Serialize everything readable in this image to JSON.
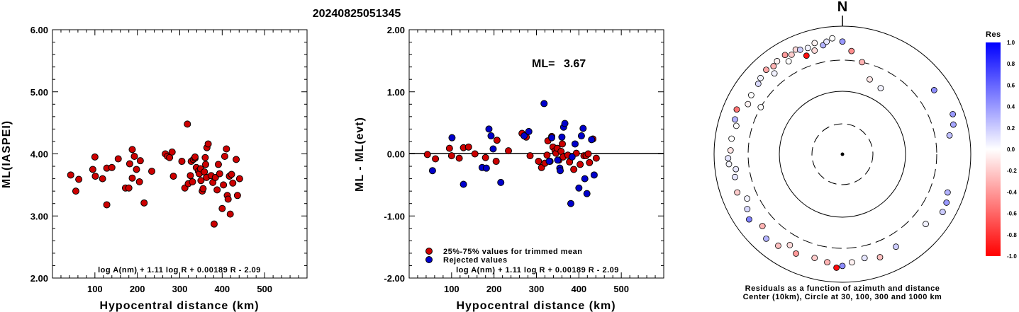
{
  "title": "20240825051345",
  "chart_data": [
    {
      "type": "scatter",
      "id": "ml-vs-distance",
      "xlabel": "Hypocentral distance (km)",
      "ylabel": "ML(IASPEI)",
      "xlim": [
        0,
        600
      ],
      "ylim": [
        2.0,
        6.0
      ],
      "xticks": [
        "100",
        "200",
        "300",
        "400",
        "500"
      ],
      "yticks": [
        "2.00",
        "3.00",
        "4.00",
        "5.00",
        "6.00"
      ],
      "formula": "log A(nm) + 1.11 log R + 0.00189 R - 2.09",
      "series": [
        {
          "color": "#cc0000",
          "points": [
            [
              43,
              3.66
            ],
            [
              55,
              3.4
            ],
            [
              62,
              3.59
            ],
            [
              95,
              3.75
            ],
            [
              100,
              3.95
            ],
            [
              101,
              3.64
            ],
            [
              118,
              3.6
            ],
            [
              128,
              3.18
            ],
            [
              128,
              3.77
            ],
            [
              140,
              3.78
            ],
            [
              155,
              3.92
            ],
            [
              172,
              3.45
            ],
            [
              180,
              3.45
            ],
            [
              182,
              3.84
            ],
            [
              188,
              4.07
            ],
            [
              188,
              3.61
            ],
            [
              193,
              3.96
            ],
            [
              198,
              3.75
            ],
            [
              205,
              3.55
            ],
            [
              207,
              3.89
            ],
            [
              216,
              3.21
            ],
            [
              234,
              3.72
            ],
            [
              266,
              4.0
            ],
            [
              271,
              3.96
            ],
            [
              276,
              3.94
            ],
            [
              282,
              4.03
            ],
            [
              285,
              3.64
            ],
            [
              305,
              3.88
            ],
            [
              312,
              3.45
            ],
            [
              318,
              4.48
            ],
            [
              320,
              3.52
            ],
            [
              325,
              3.65
            ],
            [
              327,
              3.88
            ],
            [
              330,
              3.55
            ],
            [
              332,
              3.91
            ],
            [
              336,
              3.93
            ],
            [
              336,
              3.95
            ],
            [
              339,
              3.78
            ],
            [
              344,
              3.72
            ],
            [
              346,
              3.68
            ],
            [
              349,
              3.76
            ],
            [
              350,
              3.57
            ],
            [
              353,
              3.4
            ],
            [
              355,
              3.44
            ],
            [
              358,
              3.71
            ],
            [
              360,
              3.94
            ],
            [
              361,
              3.83
            ],
            [
              363,
              3.62
            ],
            [
              364,
              4.1
            ],
            [
              367,
              4.16
            ],
            [
              374,
              3.65
            ],
            [
              378,
              3.54
            ],
            [
              381,
              2.87
            ],
            [
              384,
              3.62
            ],
            [
              388,
              3.42
            ],
            [
              391,
              3.83
            ],
            [
              394,
              3.68
            ],
            [
              400,
              3.12
            ],
            [
              403,
              3.5
            ],
            [
              406,
              3.96
            ],
            [
              410,
              4.08
            ],
            [
              412,
              3.33
            ],
            [
              414,
              3.27
            ],
            [
              417,
              3.64
            ],
            [
              419,
              3.03
            ],
            [
              422,
              3.67
            ],
            [
              425,
              3.53
            ],
            [
              433,
              3.91
            ],
            [
              436,
              3.33
            ],
            [
              441,
              3.6
            ]
          ]
        }
      ]
    },
    {
      "type": "scatter",
      "id": "residual-vs-distance",
      "xlabel": "Hypocentral distance (km)",
      "ylabel": "ML - ML(evt)",
      "xlim": [
        0,
        600
      ],
      "ylim": [
        -2.0,
        2.0
      ],
      "xticks": [
        "100",
        "200",
        "300",
        "400",
        "500"
      ],
      "yticks": [
        "-2.00",
        "-1.00",
        "0.00",
        "1.00",
        "2.00"
      ],
      "ml_label": "ML=",
      "ml_value": "3.67",
      "zero_line": 0,
      "formula": "log A(nm) + 1.11 log R + 0.00189 R - 2.09",
      "legend": {
        "position": "bottom-left",
        "entries": [
          {
            "label": "25%-75% values for trimmed mean",
            "color": "#cc0000"
          },
          {
            "label": "Rejected values",
            "color": "#0000cc"
          }
        ]
      },
      "series": [
        {
          "name": "25%-75% values for trimmed mean",
          "color": "#cc0000",
          "points": [
            [
              43,
              -0.01
            ],
            [
              62,
              -0.08
            ],
            [
              95,
              0.09
            ],
            [
              100,
              -0.03
            ],
            [
              118,
              -0.07
            ],
            [
              128,
              0.1
            ],
            [
              140,
              0.11
            ],
            [
              155,
              0.0
            ],
            [
              180,
              -0.06
            ],
            [
              205,
              -0.12
            ],
            [
              207,
              0.22
            ],
            [
              234,
              0.05
            ],
            [
              266,
              0.33
            ],
            [
              276,
              0.27
            ],
            [
              285,
              -0.03
            ],
            [
              305,
              -0.12
            ],
            [
              312,
              -0.22
            ],
            [
              320,
              -0.15
            ],
            [
              325,
              -0.02
            ],
            [
              327,
              0.21
            ],
            [
              332,
              -0.12
            ],
            [
              336,
              0.28
            ],
            [
              339,
              0.11
            ],
            [
              344,
              0.05
            ],
            [
              346,
              0.01
            ],
            [
              349,
              0.09
            ],
            [
              353,
              -0.1
            ],
            [
              358,
              0.04
            ],
            [
              361,
              0.16
            ],
            [
              363,
              -0.05
            ],
            [
              374,
              -0.02
            ],
            [
              378,
              -0.13
            ],
            [
              388,
              -0.25
            ],
            [
              394,
              0.01
            ],
            [
              403,
              -0.17
            ],
            [
              412,
              -0.03
            ],
            [
              417,
              -0.03
            ],
            [
              422,
              0.0
            ],
            [
              425,
              -0.14
            ],
            [
              433,
              0.24
            ],
            [
              441,
              -0.07
            ]
          ]
        },
        {
          "name": "Rejected values",
          "color": "#0000cc",
          "points": [
            [
              55,
              -0.27
            ],
            [
              101,
              0.26
            ],
            [
              128,
              -0.49
            ],
            [
              172,
              -0.22
            ],
            [
              182,
              -0.23
            ],
            [
              188,
              0.4
            ],
            [
              193,
              0.29
            ],
            [
              198,
              0.08
            ],
            [
              216,
              -0.46
            ],
            [
              271,
              0.29
            ],
            [
              282,
              0.36
            ],
            [
              318,
              0.81
            ],
            [
              330,
              -0.12
            ],
            [
              336,
              0.26
            ],
            [
              350,
              -0.1
            ],
            [
              355,
              -0.23
            ],
            [
              360,
              0.27
            ],
            [
              364,
              0.43
            ],
            [
              367,
              0.49
            ],
            [
              381,
              -0.8
            ],
            [
              384,
              -0.05
            ],
            [
              391,
              0.16
            ],
            [
              400,
              -0.55
            ],
            [
              406,
              0.29
            ],
            [
              410,
              0.41
            ],
            [
              414,
              -0.4
            ],
            [
              419,
              -0.64
            ],
            [
              436,
              -0.34
            ],
            [
              430,
              0.23
            ],
            [
              356,
              -0.27
            ]
          ]
        }
      ]
    },
    {
      "type": "scatter",
      "id": "polar-residuals",
      "north_label": "N",
      "caption_line1": "Residuals as a function of azimuth and distance",
      "caption_line2": "Center (10km), Circle at 30, 100, 300 and 1000 km",
      "rings_km": [
        30,
        100,
        300,
        1000
      ],
      "colorbar": {
        "title": "Res",
        "ticks": [
          "1.0",
          "0.8",
          "0.6",
          "0.4",
          "0.2",
          "0.0",
          "-0.2",
          "-0.4",
          "-0.6",
          "-0.8",
          "-1.0"
        ],
        "range": [
          -1.0,
          1.0
        ],
        "positive_color": "#0000ff",
        "negative_color": "#ff0000"
      },
      "points": [
        {
          "az": 5,
          "dist": 420,
          "res": -0.45
        },
        {
          "az": 12,
          "dist": 300,
          "res": -0.3
        },
        {
          "az": 20,
          "dist": 180,
          "res": -0.1
        },
        {
          "az": 30,
          "dist": 160,
          "res": 0.05
        },
        {
          "az": 55,
          "dist": 560,
          "res": 0.45
        },
        {
          "az": 70,
          "dist": 680,
          "res": 0.4
        },
        {
          "az": 75,
          "dist": 620,
          "res": 0.35
        },
        {
          "az": 80,
          "dist": 500,
          "res": 0.25
        },
        {
          "az": 110,
          "dist": 560,
          "res": 0.3
        },
        {
          "az": 115,
          "dist": 620,
          "res": 0.4
        },
        {
          "az": 120,
          "dist": 640,
          "res": 0.2
        },
        {
          "az": 130,
          "dist": 500,
          "res": 0.05
        },
        {
          "az": 150,
          "dist": 470,
          "res": 0.2
        },
        {
          "az": 160,
          "dist": 520,
          "res": -0.25
        },
        {
          "az": 168,
          "dist": 460,
          "res": 0.1
        },
        {
          "az": 175,
          "dist": 500,
          "res": -0.05
        },
        {
          "az": 180,
          "dist": 560,
          "res": 0.45
        },
        {
          "az": 183,
          "dist": 600,
          "res": -0.95
        },
        {
          "az": 188,
          "dist": 510,
          "res": -0.3
        },
        {
          "az": 195,
          "dist": 480,
          "res": -0.2
        },
        {
          "az": 205,
          "dist": 520,
          "res": -0.4
        },
        {
          "az": 215,
          "dist": 560,
          "res": -0.25
        },
        {
          "az": 222,
          "dist": 600,
          "res": 0.3
        },
        {
          "az": 228,
          "dist": 480,
          "res": -0.3
        },
        {
          "az": 235,
          "dist": 600,
          "res": 0.5
        },
        {
          "az": 240,
          "dist": 520,
          "res": 0.15
        },
        {
          "az": 250,
          "dist": 560,
          "res": -0.2
        },
        {
          "az": 258,
          "dist": 520,
          "res": 0.1
        },
        {
          "az": 265,
          "dist": 600,
          "res": 0.05
        },
        {
          "az": 268,
          "dist": 610,
          "res": 0.1
        },
        {
          "az": 272,
          "dist": 560,
          "res": -0.1
        },
        {
          "az": 278,
          "dist": 560,
          "res": 0.0
        },
        {
          "az": 288,
          "dist": 580,
          "res": 0.3
        },
        {
          "az": 293,
          "dist": 620,
          "res": -0.55
        },
        {
          "az": 298,
          "dist": 470,
          "res": -0.05
        },
        {
          "az": 303,
          "dist": 500,
          "res": 0.0
        },
        {
          "az": 310,
          "dist": 520,
          "res": 0.15
        },
        {
          "az": 313,
          "dist": 560,
          "res": 0.05
        },
        {
          "az": 318,
          "dist": 600,
          "res": -0.35
        },
        {
          "az": 322,
          "dist": 560,
          "res": -0.3
        },
        {
          "az": 325,
          "dist": 600,
          "res": -0.05
        },
        {
          "az": 330,
          "dist": 620,
          "res": -0.4
        },
        {
          "az": 333,
          "dist": 560,
          "res": -0.2
        },
        {
          "az": 336,
          "dist": 620,
          "res": -0.15
        },
        {
          "az": 338,
          "dist": 580,
          "res": 0.2
        },
        {
          "az": 340,
          "dist": 440,
          "res": -0.95
        },
        {
          "az": 342,
          "dist": 560,
          "res": 0.05
        },
        {
          "az": 346,
          "dist": 620,
          "res": -0.05
        },
        {
          "az": 350,
          "dist": 540,
          "res": 0.3
        },
        {
          "az": 352,
          "dist": 600,
          "res": 0.1
        },
        {
          "az": 355,
          "dist": 660,
          "res": 0.0
        },
        {
          "az": 0,
          "dist": 580,
          "res": 0.4
        },
        {
          "az": 345,
          "dist": 480,
          "res": -0.15
        },
        {
          "az": 330,
          "dist": 480,
          "res": 0.0
        },
        {
          "az": 320,
          "dist": 450,
          "res": 0.05
        },
        {
          "az": 300,
          "dist": 300,
          "res": 0.0
        },
        {
          "az": 285,
          "dist": 520,
          "res": 0.0
        },
        {
          "az": 262,
          "dist": 480,
          "res": 0.1
        },
        {
          "az": 245,
          "dist": 440,
          "res": 0.05
        },
        {
          "az": 210,
          "dist": 440,
          "res": -0.15
        }
      ]
    }
  ]
}
